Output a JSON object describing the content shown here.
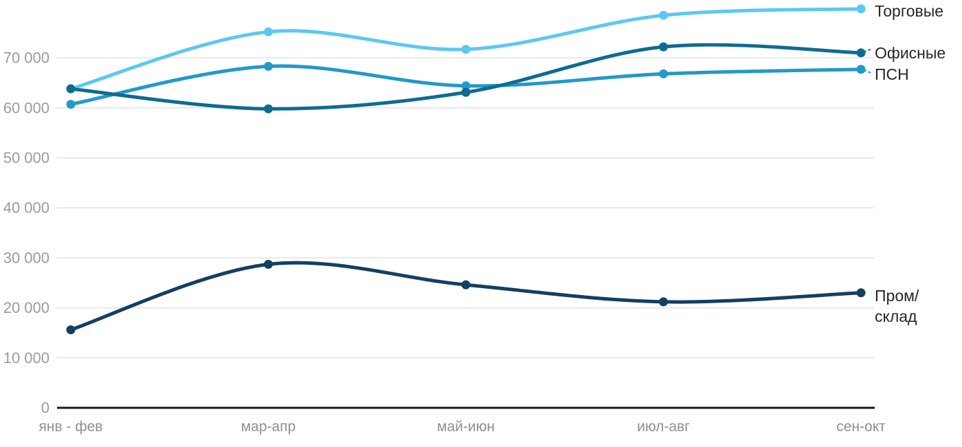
{
  "chart_data": {
    "type": "line",
    "title": "",
    "xlabel": "",
    "ylabel": "",
    "categories": [
      "янв - фев",
      "мар-апр",
      "май-июн",
      "июл-авг",
      "сен-окт"
    ],
    "series": [
      {
        "key": "trade",
        "name": "Торговые",
        "legend_lines": [
          "Торговые"
        ],
        "color": "#5cc8f2",
        "values": [
          63800,
          75200,
          71700,
          78500,
          79800
        ],
        "connector": false
      },
      {
        "key": "psn",
        "name": "ПСН",
        "legend_lines": [
          "ПСН"
        ],
        "color": "#2299c8",
        "values": [
          60700,
          68300,
          64400,
          66800,
          67700
        ],
        "connector": true
      },
      {
        "key": "office",
        "name": "Офисные",
        "legend_lines": [
          "Офисные"
        ],
        "color": "#0e6b92",
        "values": [
          63800,
          59800,
          63100,
          72200,
          71000
        ],
        "connector": true
      },
      {
        "key": "industrial",
        "name": "Пром/склад",
        "legend_lines": [
          "Пром/",
          "склад"
        ],
        "color": "#123f63",
        "values": [
          15600,
          28700,
          24600,
          21200,
          23000
        ],
        "connector": false
      }
    ],
    "y_axis": {
      "ticks": [
        0,
        10000,
        20000,
        30000,
        40000,
        50000,
        60000,
        70000
      ],
      "tick_labels": [
        "0",
        "10 000",
        "20 000",
        "30 000",
        "40 000",
        "50 000",
        "60 000",
        "70 000"
      ],
      "range": [
        0,
        80000
      ]
    },
    "grid": "horizontal",
    "legend_position": "right-of-line-end",
    "colors": {
      "grid_line": "#e9e9e9",
      "axis_line": "#1a1a1a",
      "y_tick_text": "#9b9b9b",
      "x_tick_text": "#8f8f8f",
      "legend_text": "#262626"
    }
  }
}
